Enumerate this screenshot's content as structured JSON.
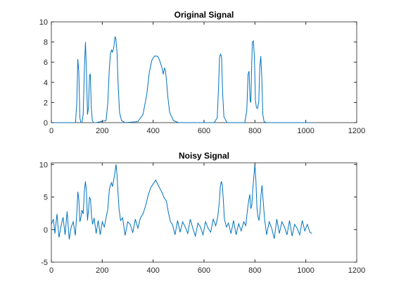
{
  "chart_data": [
    {
      "type": "line",
      "title": "Original Signal",
      "xlabel": "",
      "ylabel": "",
      "xlim": [
        0,
        1200
      ],
      "ylim": [
        0,
        10
      ],
      "xticks": [
        0,
        200,
        400,
        600,
        800,
        1000,
        1200
      ],
      "yticks": [
        0,
        2,
        4,
        6,
        8,
        10
      ],
      "grid": false,
      "series": [
        {
          "color": "#0072bd",
          "x": [
            0,
            95,
            100,
            104,
            108,
            112,
            116,
            120,
            125,
            130,
            134,
            138,
            142,
            146,
            150,
            153,
            157,
            161,
            166,
            175,
            215,
            222,
            228,
            232,
            236,
            240,
            245,
            250,
            253,
            258,
            262,
            268,
            276,
            290,
            340,
            360,
            375,
            385,
            395,
            405,
            415,
            420,
            428,
            435,
            440,
            444,
            448,
            452,
            458,
            465,
            480,
            500,
            640,
            652,
            657,
            661,
            665,
            669,
            673,
            678,
            690,
            760,
            768,
            773,
            777,
            781,
            784,
            787,
            790,
            794,
            798,
            802,
            806,
            810,
            815,
            819,
            823,
            827,
            831,
            836,
            845,
            1024
          ],
          "y": [
            0,
            0,
            2.0,
            6.3,
            5.0,
            0.5,
            0,
            0,
            0.8,
            5.5,
            8.0,
            5.0,
            0.8,
            1.5,
            4.7,
            4.8,
            1.5,
            0.2,
            0,
            0,
            0.2,
            2.0,
            5.5,
            6.8,
            7.2,
            7.0,
            7.4,
            8.5,
            8.4,
            7.0,
            4.0,
            1.0,
            0.2,
            0,
            0.1,
            0.8,
            2.8,
            5.0,
            6.2,
            6.6,
            6.6,
            6.5,
            6.0,
            5.4,
            4.8,
            5.4,
            5.2,
            4.3,
            2.5,
            1.0,
            0.2,
            0,
            0,
            0.5,
            3.5,
            6.5,
            6.8,
            6.5,
            3.0,
            0.6,
            0,
            0,
            1.2,
            4.8,
            5.1,
            2.2,
            2.0,
            5.5,
            8.0,
            8.1,
            6.5,
            2.2,
            1.5,
            1.4,
            2.0,
            5.5,
            6.6,
            4.5,
            0.8,
            0.1,
            0,
            0
          ]
        }
      ]
    },
    {
      "type": "line",
      "title": "Noisy Signal",
      "xlabel": "",
      "ylabel": "",
      "xlim": [
        0,
        1200
      ],
      "ylim": [
        -5,
        10.25
      ],
      "xticks": [
        0,
        200,
        400,
        600,
        800,
        1000,
        1200
      ],
      "yticks": [
        -5,
        0,
        5,
        10
      ],
      "grid": false,
      "series": [
        {
          "color": "#0072bd",
          "x": [
            0,
            8,
            14,
            22,
            30,
            38,
            46,
            54,
            62,
            70,
            78,
            86,
            94,
            100,
            104,
            108,
            112,
            116,
            120,
            125,
            130,
            134,
            138,
            142,
            146,
            150,
            154,
            158,
            162,
            168,
            176,
            184,
            192,
            200,
            208,
            215,
            222,
            228,
            232,
            236,
            240,
            245,
            250,
            254,
            258,
            262,
            266,
            272,
            280,
            290,
            300,
            310,
            320,
            330,
            340,
            350,
            360,
            370,
            380,
            390,
            400,
            410,
            420,
            428,
            436,
            444,
            452,
            460,
            468,
            476,
            486,
            496,
            506,
            516,
            526,
            536,
            546,
            556,
            566,
            576,
            586,
            596,
            606,
            616,
            626,
            636,
            646,
            654,
            660,
            664,
            668,
            672,
            676,
            680,
            688,
            696,
            706,
            716,
            726,
            736,
            746,
            756,
            764,
            770,
            776,
            780,
            784,
            788,
            792,
            796,
            800,
            804,
            808,
            812,
            816,
            820,
            824,
            828,
            832,
            838,
            846,
            856,
            866,
            876,
            886,
            896,
            906,
            916,
            926,
            936,
            946,
            956,
            966,
            976,
            986,
            996,
            1006,
            1016,
            1024
          ],
          "y": [
            0.8,
            1.6,
            -0.6,
            2.4,
            -1.2,
            0.5,
            1.9,
            -0.8,
            2.8,
            -1.5,
            0.4,
            1.2,
            -0.9,
            2.5,
            5.8,
            4.6,
            1.2,
            1.8,
            3.0,
            2.4,
            6.0,
            7.4,
            5.8,
            1.4,
            3.0,
            5.0,
            4.6,
            2.0,
            0.8,
            1.8,
            -0.6,
            1.4,
            -0.8,
            1.2,
            0.4,
            1.8,
            3.2,
            6.2,
            6.8,
            7.2,
            6.6,
            7.6,
            8.8,
            10.0,
            8.4,
            5.6,
            3.2,
            1.4,
            1.8,
            -0.9,
            1.2,
            0.8,
            -0.5,
            1.6,
            0.2,
            1.8,
            2.4,
            3.6,
            5.2,
            6.4,
            7.0,
            7.6,
            6.8,
            6.2,
            5.6,
            4.8,
            4.4,
            2.6,
            1.2,
            0.8,
            -0.8,
            1.4,
            -0.4,
            1.2,
            0.4,
            -0.6,
            1.6,
            0.2,
            -1.0,
            1.0,
            0.4,
            -0.8,
            1.2,
            0.2,
            -0.4,
            1.6,
            0.6,
            2.0,
            4.2,
            6.6,
            7.4,
            6.8,
            4.4,
            1.6,
            0.4,
            1.0,
            -0.6,
            1.4,
            -0.8,
            0.9,
            -0.2,
            1.2,
            0.6,
            2.8,
            4.6,
            5.4,
            3.2,
            3.8,
            6.4,
            8.2,
            10.0,
            7.4,
            3.2,
            2.0,
            1.4,
            2.6,
            5.4,
            6.8,
            4.6,
            1.6,
            -0.8,
            1.2,
            0.2,
            -1.4,
            1.6,
            -0.6,
            1.2,
            0.4,
            -0.8,
            1.4,
            -1.0,
            0.8,
            0.2,
            -0.8,
            1.4,
            -0.2,
            0.8,
            -0.4,
            -0.6
          ]
        }
      ]
    }
  ]
}
